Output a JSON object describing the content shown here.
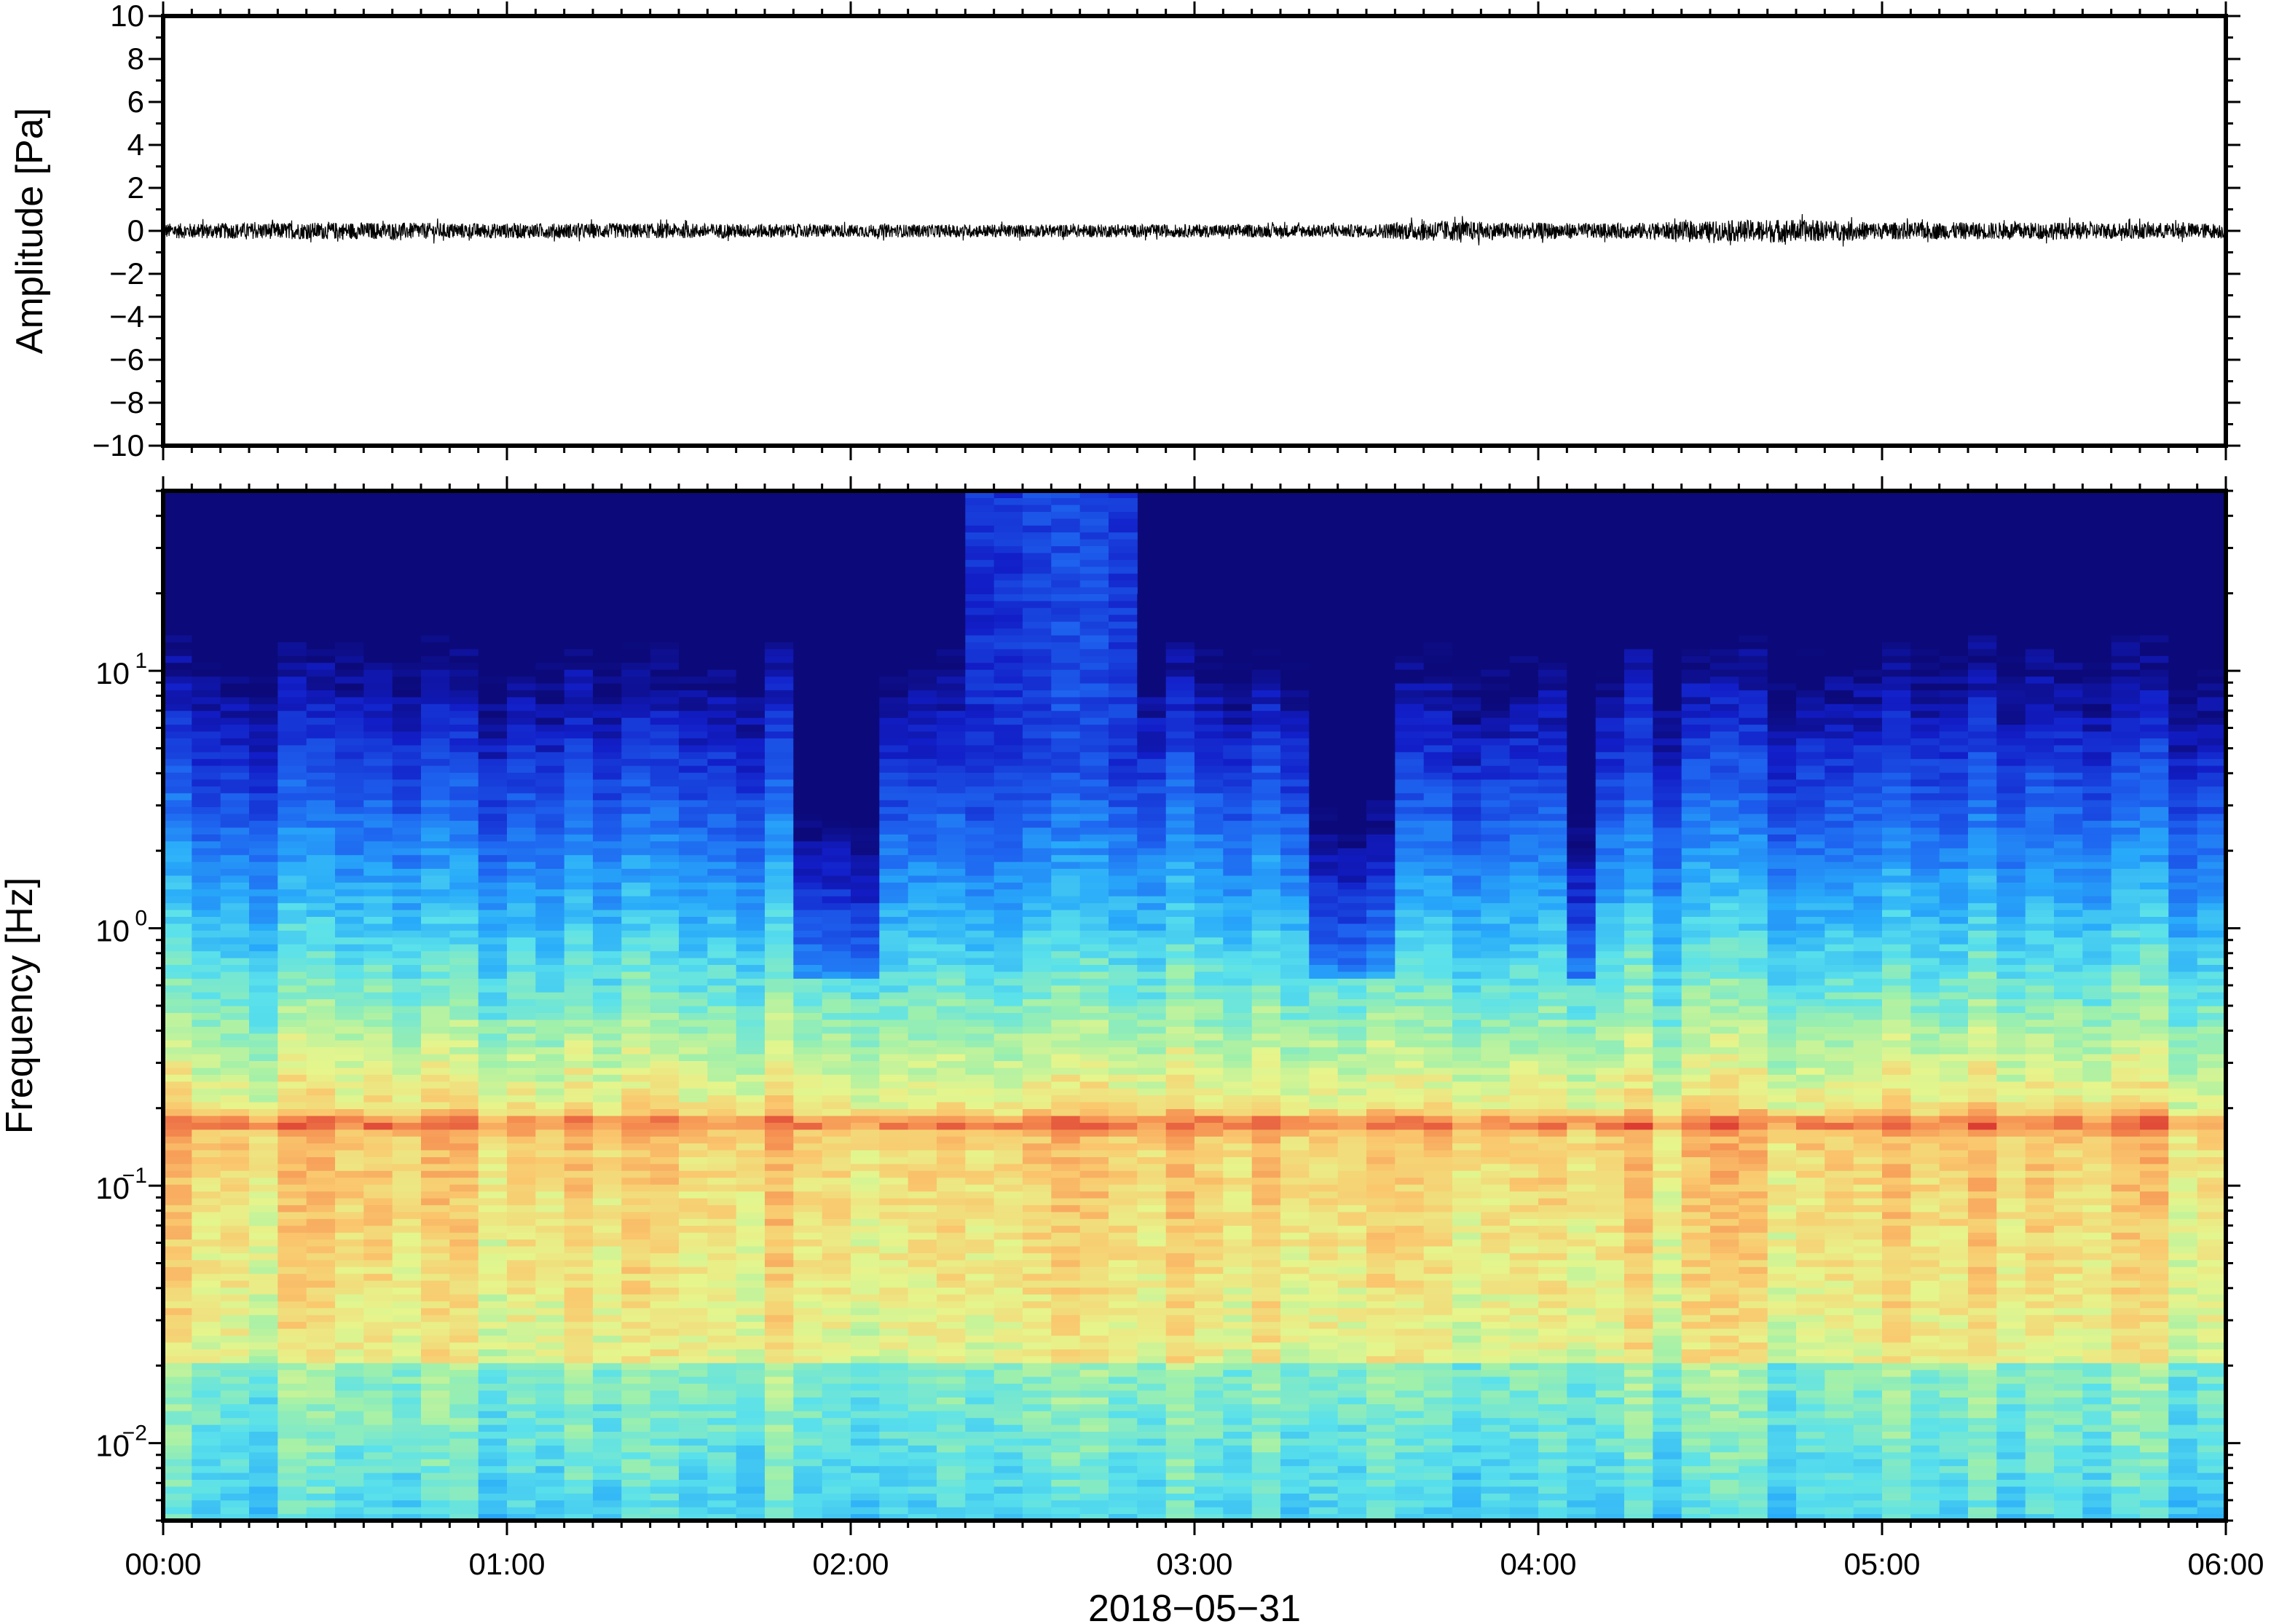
{
  "chart_data": [
    {
      "type": "line",
      "panel": "waveform",
      "ylabel": "Amplitude [Pa]",
      "ylim": [
        -10,
        10
      ],
      "yticks": [
        10,
        8,
        6,
        4,
        2,
        0,
        -2,
        -4,
        -6,
        -8,
        -10
      ],
      "ytick_labels": [
        "10",
        "8",
        "6",
        "4",
        "2",
        "0",
        "−2",
        "−4",
        "−6",
        "−8",
        "−10"
      ],
      "xlim_hours": [
        0,
        6
      ],
      "series": [
        {
          "color": "#000000",
          "noise_envelope": {
            "x_hours": [
              0.0,
              0.5,
              1.0,
              1.5,
              2.0,
              2.5,
              3.0,
              3.5,
              3.7,
              3.9,
              4.2,
              4.5,
              4.7,
              5.0,
              5.5,
              6.0
            ],
            "amplitude_pa": [
              0.35,
              0.4,
              0.35,
              0.35,
              0.3,
              0.3,
              0.3,
              0.3,
              0.5,
              0.4,
              0.35,
              0.45,
              0.55,
              0.4,
              0.4,
              0.35
            ]
          }
        }
      ]
    },
    {
      "type": "heatmap",
      "panel": "spectrogram",
      "ylabel": "Frequency [Hz]",
      "xlabel": "2018−05−31",
      "yscale": "log",
      "ylim": [
        0.005,
        50
      ],
      "yticks": [
        {
          "base": "10",
          "exp": "1",
          "value": 10
        },
        {
          "base": "10",
          "exp": "0",
          "value": 1
        },
        {
          "base": "10",
          "exp": "−1",
          "value": 0.1
        },
        {
          "base": "10",
          "exp": "−2",
          "value": 0.01
        }
      ],
      "xlim_hours": [
        0,
        6
      ],
      "xticks": [
        "00:00",
        "01:00",
        "02:00",
        "03:00",
        "04:00",
        "05:00",
        "06:00"
      ],
      "colormap": "jet",
      "colorbar": "none",
      "dominant_band_hz": 0.175,
      "quiet_periods_hours": [
        [
          1.85,
          2.1
        ],
        [
          3.35,
          3.6
        ],
        [
          4.05,
          4.15
        ]
      ],
      "high_frequency_burst_hours": [
        2.3,
        2.85
      ]
    }
  ]
}
